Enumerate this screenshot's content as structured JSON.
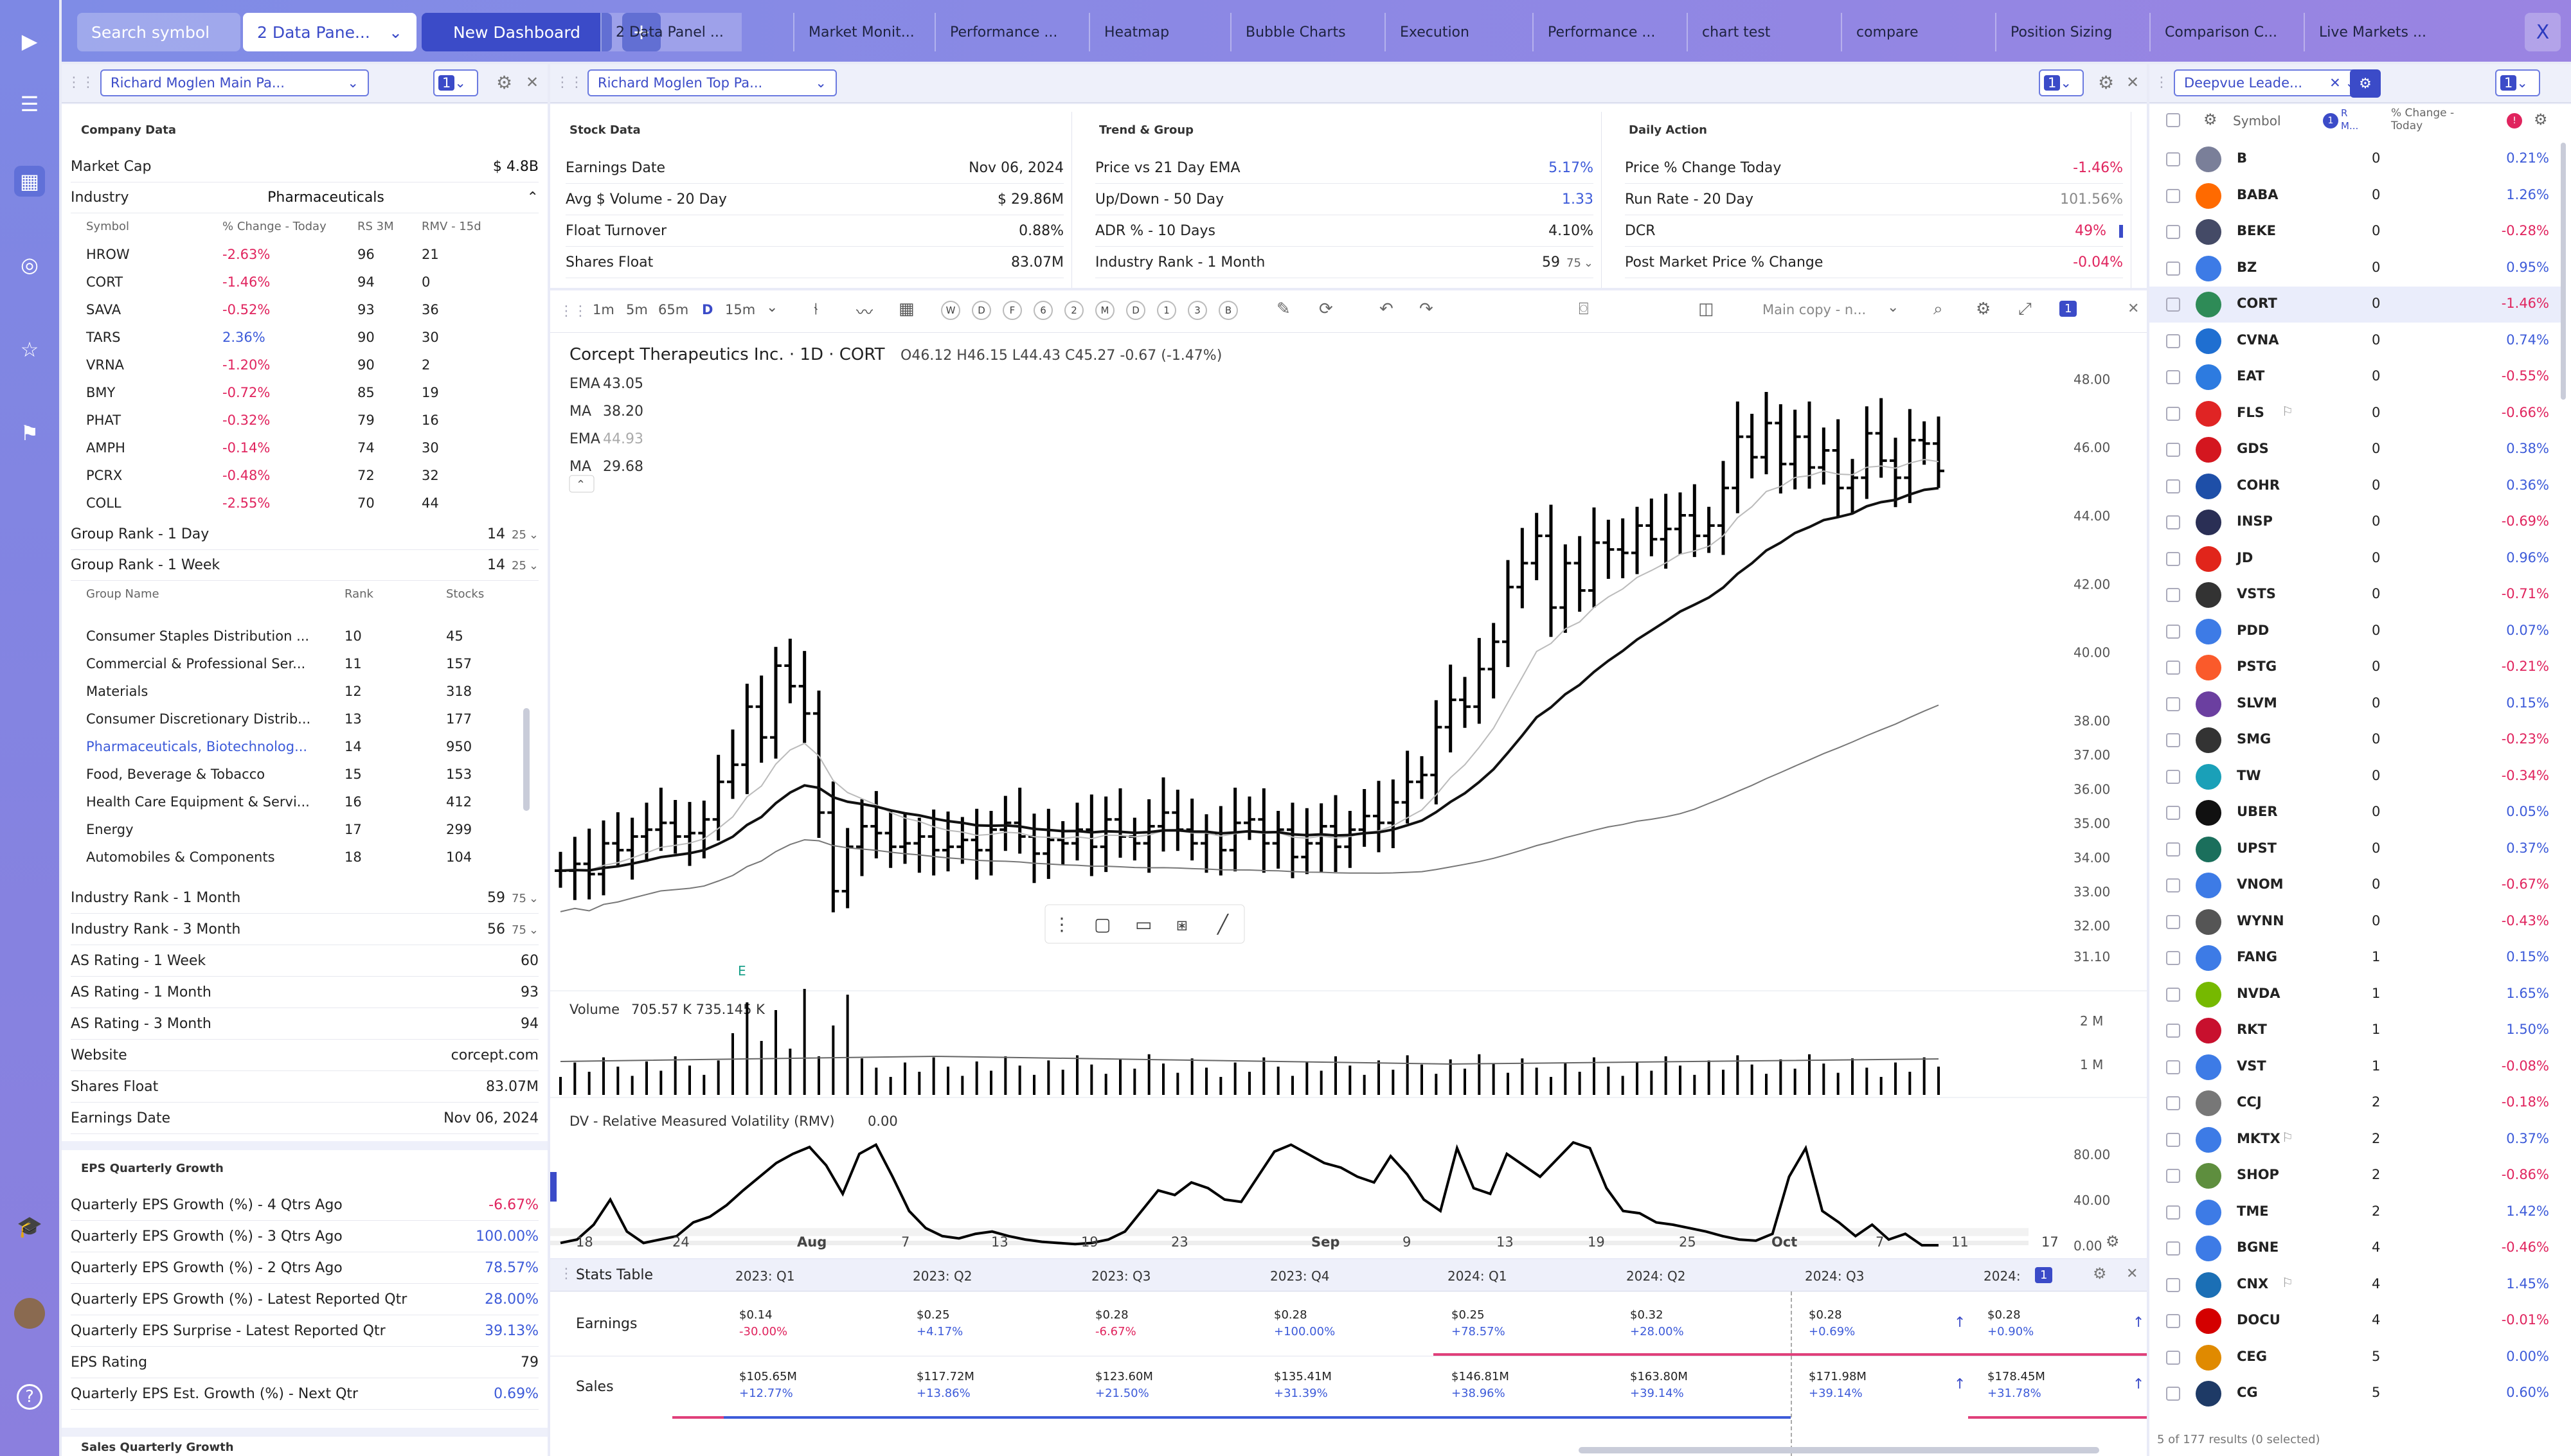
{
  "nav": {
    "search_placeholder": "Search symbol",
    "dashboard_select": "2 Data Pane...",
    "new_dashboard": "New Dashboard",
    "add": "+",
    "close": "X",
    "tabs": [
      "2 Data Panel ...",
      "Market Monit...",
      "Performance ...",
      "Heatmap",
      "Bubble Charts",
      "Execution",
      "Performance ...",
      "chart test",
      "compare",
      "Position Sizing",
      "Comparison C...",
      "Live Markets ..."
    ]
  },
  "left_panel": {
    "title": "Richard Moglen Main Pa...",
    "count": "1",
    "company_section": "Company Data",
    "market_cap": {
      "label": "Market Cap",
      "value": "$ 4.8B"
    },
    "industry": {
      "label": "Industry",
      "value": "Pharmaceuticals"
    },
    "peer_headers": [
      "Symbol",
      "% Change - Today",
      "RS 3M",
      "RMV - 15d"
    ],
    "peers": [
      [
        "HROW",
        "-2.63%",
        "96",
        "21"
      ],
      [
        "CORT",
        "-1.46%",
        "94",
        "0"
      ],
      [
        "SAVA",
        "-0.52%",
        "93",
        "36"
      ],
      [
        "TARS",
        "2.36%",
        "90",
        "30"
      ],
      [
        "VRNA",
        "-1.20%",
        "90",
        "2"
      ],
      [
        "BMY",
        "-0.72%",
        "85",
        "19"
      ],
      [
        "PHAT",
        "-0.32%",
        "79",
        "16"
      ],
      [
        "AMPH",
        "-0.14%",
        "74",
        "30"
      ],
      [
        "PCRX",
        "-0.48%",
        "72",
        "32"
      ],
      [
        "COLL",
        "-2.55%",
        "70",
        "44"
      ]
    ],
    "group_rank_1d": {
      "label": "Group Rank - 1 Day",
      "value": "14",
      "of": "25"
    },
    "group_rank_1w": {
      "label": "Group Rank - 1 Week",
      "value": "14",
      "of": "25"
    },
    "group_headers": [
      "Group Name",
      "Rank",
      "Stocks"
    ],
    "groups": [
      [
        "Consumer Staples Distribution ...",
        "10",
        "45"
      ],
      [
        "Commercial & Professional Ser...",
        "11",
        "157"
      ],
      [
        "Materials",
        "12",
        "318"
      ],
      [
        "Consumer Discretionary Distrib...",
        "13",
        "177"
      ],
      [
        "Pharmaceuticals, Biotechnolog...",
        "14",
        "950"
      ],
      [
        "Food, Beverage & Tobacco",
        "15",
        "153"
      ],
      [
        "Health Care Equipment & Servi...",
        "16",
        "412"
      ],
      [
        "Energy",
        "17",
        "299"
      ],
      [
        "Automobiles & Components",
        "18",
        "104"
      ]
    ],
    "stats": [
      [
        "Industry Rank - 1 Month",
        "59",
        "75"
      ],
      [
        "Industry Rank - 3 Month",
        "56",
        "75"
      ],
      [
        "AS Rating - 1 Week",
        "60",
        ""
      ],
      [
        "AS Rating - 1 Month",
        "93",
        ""
      ],
      [
        "AS Rating - 3 Month",
        "94",
        ""
      ],
      [
        "Website",
        "corcept.com",
        ""
      ],
      [
        "Shares Float",
        "83.07M",
        ""
      ],
      [
        "Earnings Date",
        "Nov 06, 2024",
        ""
      ]
    ],
    "eps_section": "EPS Quarterly Growth",
    "eps": [
      [
        "Quarterly EPS Growth (%) - 4 Qtrs Ago",
        "-6.67%"
      ],
      [
        "Quarterly EPS Growth (%) - 3 Qtrs Ago",
        "100.00%"
      ],
      [
        "Quarterly EPS Growth (%) - 2 Qtrs Ago",
        "78.57%"
      ],
      [
        "Quarterly EPS Growth (%) - Latest Reported Qtr",
        "28.00%"
      ],
      [
        "Quarterly EPS Surprise - Latest Reported Qtr",
        "39.13%"
      ],
      [
        "EPS Rating",
        "79"
      ],
      [
        "Quarterly EPS Est. Growth (%) - Next Qtr",
        "0.69%"
      ]
    ],
    "sales_section": "Sales Quarterly Growth"
  },
  "top_panel": {
    "title": "Richard Moglen Top Pa...",
    "count": "1",
    "stock_section": "Stock Data",
    "stock": [
      [
        "Earnings Date",
        "Nov 06, 2024"
      ],
      [
        "Avg $ Volume - 20 Day",
        "$ 29.86M"
      ],
      [
        "Float Turnover",
        "0.88%"
      ],
      [
        "Shares Float",
        "83.07M"
      ]
    ],
    "trend_section": "Trend & Group",
    "trend": [
      [
        "Price vs 21 Day EMA",
        "5.17%"
      ],
      [
        "Up/Down - 50 Day",
        "1.33"
      ],
      [
        "ADR % - 10 Days",
        "4.10%"
      ],
      [
        "Industry Rank - 1 Month",
        "59"
      ]
    ],
    "trend_of": "75",
    "daily_section": "Daily Action",
    "daily": [
      [
        "Price % Change Today",
        "-1.46%"
      ],
      [
        "Run Rate - 20 Day",
        "101.56%"
      ],
      [
        "DCR",
        "49%"
      ],
      [
        "Post Market Price % Change",
        "-0.04%"
      ]
    ]
  },
  "chart_toolbar": {
    "intervals": [
      "1m",
      "5m",
      "65m",
      "D",
      "15m"
    ],
    "letters": [
      "W",
      "D",
      "F",
      "6",
      "2",
      "M",
      "D",
      "1",
      "3",
      "B"
    ],
    "layout": "Main copy - n..."
  },
  "chart_data": {
    "type": "ohlc",
    "title": "Corcept Therapeutics Inc. · 1D · CORT",
    "ohlc_label": "O46.12 H46.15 L44.43 C45.27 -0.67 (-1.47%)",
    "indicators": [
      [
        "EMA",
        "43.05"
      ],
      [
        "MA",
        "38.20"
      ],
      [
        "EMA",
        "44.93"
      ],
      [
        "MA",
        "29.68"
      ]
    ],
    "y_ticks": [
      "48.00",
      "46.00",
      "44.00",
      "42.00",
      "40.00",
      "38.00",
      "37.00",
      "36.00",
      "35.00",
      "34.00",
      "33.00",
      "32.00",
      "31.10"
    ],
    "x_ticks": [
      "18",
      "24",
      "Aug",
      "7",
      "13",
      "19",
      "23",
      "Sep",
      "9",
      "13",
      "19",
      "25",
      "Oct",
      "7",
      "11",
      "17"
    ],
    "earnings_marker": "E",
    "close": [
      33.6,
      33.8,
      33.5,
      34.4,
      34.2,
      34.6,
      34.8,
      35.0,
      34.6,
      34.7,
      35.1,
      36.2,
      36.7,
      38.4,
      37.5,
      39.6,
      39.0,
      38.2,
      35.3,
      33.0,
      34.3,
      34.9,
      34.7,
      34.3,
      34.4,
      34.6,
      34.2,
      34.3,
      34.5,
      34.2,
      34.8,
      35.0,
      34.6,
      34.1,
      34.5,
      34.4,
      34.8,
      34.3,
      35.1,
      34.6,
      34.4,
      34.9,
      35.3,
      34.8,
      34.4,
      34.7,
      34.2,
      35.0,
      35.1,
      34.4,
      34.8,
      34.0,
      34.4,
      34.9,
      34.3,
      34.8,
      35.2,
      35.0,
      35.6,
      36.2,
      36.4,
      37.8,
      38.6,
      38.4,
      39.5,
      40.3,
      41.9,
      42.6,
      43.4,
      41.3,
      42.6,
      41.8,
      43.2,
      43.0,
      42.9,
      43.7,
      43.3,
      43.6,
      44.0,
      43.4,
      43.7,
      44.8,
      46.3,
      45.7,
      46.7,
      45.5,
      46.3,
      45.4,
      45.9,
      44.8,
      45.1,
      46.4,
      45.6,
      45.1,
      46.2,
      46.1,
      45.3
    ],
    "volume_label": "Volume",
    "volume_values": "705.57 K  735.145 K",
    "volume_ticks": [
      "2 M",
      "1 M"
    ],
    "rmv_label": "DV - Relative Measured Volatility (RMV)",
    "rmv_value": "0.00",
    "rmv_ticks": [
      "80.00",
      "40.00",
      "0.00"
    ],
    "rmv": [
      2,
      5,
      18,
      40,
      12,
      2,
      5,
      8,
      20,
      25,
      35,
      48,
      60,
      72,
      80,
      86,
      70,
      45,
      80,
      88,
      60,
      30,
      15,
      8,
      6,
      10,
      12,
      8,
      5,
      3,
      2,
      1,
      2,
      5,
      12,
      30,
      48,
      44,
      55,
      50,
      40,
      38,
      60,
      82,
      88,
      80,
      72,
      68,
      60,
      55,
      78,
      62,
      40,
      30,
      85,
      50,
      45,
      80,
      70,
      60,
      75,
      90,
      85,
      50,
      30,
      28,
      20,
      18,
      15,
      12,
      8,
      5,
      4,
      10,
      60,
      85,
      30,
      20,
      8,
      18,
      5,
      10,
      0,
      0
    ]
  },
  "stats_table": {
    "title": "Stats Table",
    "quarters": [
      "2023: Q1",
      "2023: Q2",
      "2023: Q3",
      "2023: Q4",
      "2024: Q1",
      "2024: Q2",
      "2024: Q3",
      "2024:"
    ],
    "earnings_label": "Earnings",
    "earnings": [
      [
        "$0.14",
        "-30.00%"
      ],
      [
        "$0.25",
        "+4.17%"
      ],
      [
        "$0.28",
        "-6.67%"
      ],
      [
        "$0.28",
        "+100.00%"
      ],
      [
        "$0.25",
        "+78.57%"
      ],
      [
        "$0.32",
        "+28.00%"
      ],
      [
        "$0.28",
        "+0.69%"
      ],
      [
        "$0.28",
        "+0.90%"
      ]
    ],
    "sales_label": "Sales",
    "sales": [
      [
        "$105.65M",
        "+12.77%"
      ],
      [
        "$117.72M",
        "+13.86%"
      ],
      [
        "$123.60M",
        "+21.50%"
      ],
      [
        "$135.41M",
        "+31.39%"
      ],
      [
        "$146.81M",
        "+38.96%"
      ],
      [
        "$163.80M",
        "+39.14%"
      ],
      [
        "$171.98M",
        "+39.14%"
      ],
      [
        "$178.45M",
        "+31.78%"
      ]
    ]
  },
  "watchlist": {
    "title": "Deepvue Leade...",
    "count": "1",
    "headers": [
      "Symbol",
      "R M...",
      "% Change - Today"
    ],
    "footer": "5 of 177 results (0 selected)",
    "rows": [
      [
        "B",
        "0",
        "0.21%",
        "#7a7f99"
      ],
      [
        "BABA",
        "0",
        "1.26%",
        "#ff6a00"
      ],
      [
        "BEKE",
        "0",
        "-0.28%",
        "#444a66"
      ],
      [
        "BZ",
        "0",
        "0.95%",
        "#3d7be6"
      ],
      [
        "CORT",
        "0",
        "-1.46%",
        "#2e8b57"
      ],
      [
        "CVNA",
        "0",
        "0.74%",
        "#1f6fd1"
      ],
      [
        "EAT",
        "0",
        "-0.55%",
        "#2d7be0"
      ],
      [
        "FLS",
        "0",
        "-0.66%",
        "#e02424"
      ],
      [
        "GDS",
        "0",
        "0.38%",
        "#d4161f"
      ],
      [
        "COHR",
        "0",
        "0.36%",
        "#1e4fa8"
      ],
      [
        "INSP",
        "0",
        "-0.69%",
        "#2a2f55"
      ],
      [
        "JD",
        "0",
        "0.96%",
        "#e1251b"
      ],
      [
        "VSTS",
        "0",
        "-0.71%",
        "#333"
      ],
      [
        "PDD",
        "0",
        "0.07%",
        "#3d7be6"
      ],
      [
        "PSTG",
        "0",
        "-0.21%",
        "#fa5a2b"
      ],
      [
        "SLVM",
        "0",
        "0.15%",
        "#6b3fa0"
      ],
      [
        "SMG",
        "0",
        "-0.23%",
        "#333"
      ],
      [
        "TW",
        "0",
        "-0.34%",
        "#1aa0b8"
      ],
      [
        "UBER",
        "0",
        "0.05%",
        "#111"
      ],
      [
        "UPST",
        "0",
        "0.37%",
        "#1b6f5c"
      ],
      [
        "VNOM",
        "0",
        "-0.67%",
        "#3d7be6"
      ],
      [
        "WYNN",
        "0",
        "-0.43%",
        "#555"
      ],
      [
        "FANG",
        "1",
        "0.15%",
        "#3d7be6"
      ],
      [
        "NVDA",
        "1",
        "1.65%",
        "#76b900"
      ],
      [
        "RKT",
        "1",
        "1.50%",
        "#c8102e"
      ],
      [
        "VST",
        "1",
        "-0.08%",
        "#3d7be6"
      ],
      [
        "CCJ",
        "2",
        "-0.18%",
        "#777"
      ],
      [
        "MKTX",
        "2",
        "0.37%",
        "#3d7be6"
      ],
      [
        "SHOP",
        "2",
        "-0.86%",
        "#5e8e3e"
      ],
      [
        "TME",
        "2",
        "1.42%",
        "#3d7be6"
      ],
      [
        "BGNE",
        "4",
        "-0.46%",
        "#3d7be6"
      ],
      [
        "CNX",
        "4",
        "1.45%",
        "#1b6fb5"
      ],
      [
        "DOCU",
        "4",
        "-0.01%",
        "#d40000"
      ],
      [
        "CEG",
        "5",
        "0.00%",
        "#e08a00"
      ],
      [
        "CG",
        "5",
        "0.60%",
        "#1e3a66"
      ]
    ]
  }
}
